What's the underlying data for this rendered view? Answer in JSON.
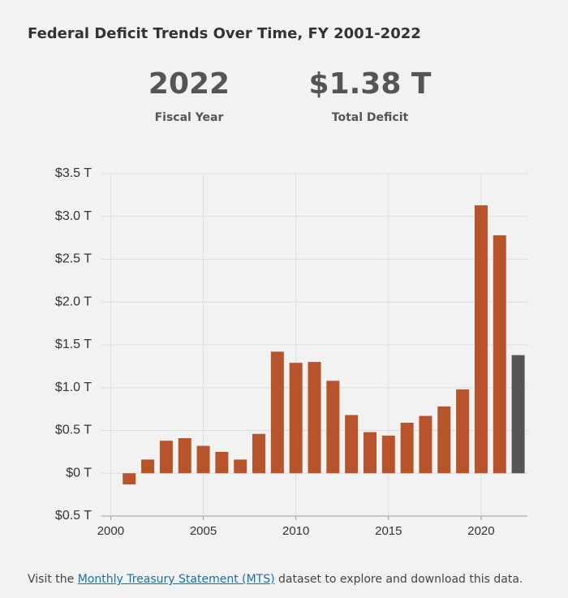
{
  "header": {
    "title": "Federal Deficit Trends Over Time, FY 2001-2022",
    "stats": [
      {
        "value": "2022",
        "label": "Fiscal Year"
      },
      {
        "value": "$1.38 T",
        "label": "Total Deficit"
      }
    ]
  },
  "chart_data": {
    "type": "bar",
    "x": [
      2001,
      2002,
      2003,
      2004,
      2005,
      2006,
      2007,
      2008,
      2009,
      2010,
      2011,
      2012,
      2013,
      2014,
      2015,
      2016,
      2017,
      2018,
      2019,
      2020,
      2021,
      2022
    ],
    "values": [
      -0.13,
      0.16,
      0.38,
      0.41,
      0.32,
      0.25,
      0.16,
      0.46,
      1.42,
      1.29,
      1.3,
      1.08,
      0.68,
      0.48,
      0.44,
      0.59,
      0.67,
      0.78,
      0.98,
      3.13,
      2.78,
      1.38
    ],
    "colors": [
      "#b7542b",
      "#b7542b",
      "#b7542b",
      "#b7542b",
      "#b7542b",
      "#b7542b",
      "#b7542b",
      "#b7542b",
      "#b7542b",
      "#b7542b",
      "#b7542b",
      "#b7542b",
      "#b7542b",
      "#b7542b",
      "#b7542b",
      "#b7542b",
      "#b7542b",
      "#b7542b",
      "#b7542b",
      "#b7542b",
      "#b7542b",
      "#555555"
    ],
    "xlim": [
      1999.5,
      2022.5
    ],
    "xticks": [
      2000,
      2005,
      2010,
      2015,
      2020
    ],
    "ylim": [
      -0.5,
      3.5
    ],
    "yticks": [
      {
        "value": -0.5,
        "label": "$0.5 T"
      },
      {
        "value": 0,
        "label": "$0 T"
      },
      {
        "value": 0.5,
        "label": "$0.5 T"
      },
      {
        "value": 1,
        "label": "$1.0 T"
      },
      {
        "value": 1.5,
        "label": "$1.5 T"
      },
      {
        "value": 2,
        "label": "$2.0 T"
      },
      {
        "value": 2.5,
        "label": "$2.5 T"
      },
      {
        "value": 3,
        "label": "$3.0 T"
      },
      {
        "value": 3.5,
        "label": "$3.5 T"
      }
    ],
    "grid": true
  },
  "footer": {
    "before": "Visit the ",
    "link": "Monthly Treasury Statement (MTS)",
    "after": " dataset to explore and download this data."
  }
}
